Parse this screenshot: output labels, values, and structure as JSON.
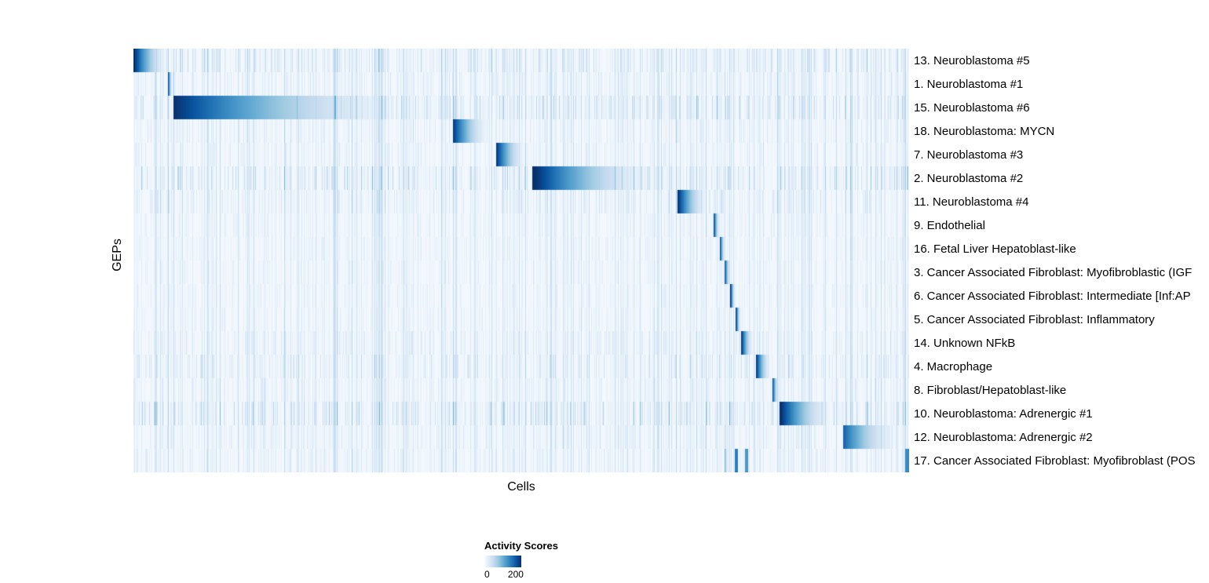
{
  "chart_data": {
    "type": "heatmap",
    "title": "",
    "xlabel": "Cells",
    "ylabel": "GEPs",
    "legend": {
      "title": "Activity Scores",
      "min": 0,
      "max": 200,
      "min_label": "0",
      "max_label": "200",
      "position": "bottom-left"
    },
    "colormap": [
      "#f7fbff",
      "#deebf7",
      "#c6dbef",
      "#9ecae1",
      "#6baed6",
      "#4292c6",
      "#2171b5",
      "#08519c",
      "#08306b"
    ],
    "grid": false,
    "description": "GEP activity scores per cell; cells ordered so each GEP's high-activity block forms a diagonal. Block start/end are fractions of the x-axis; peak is the activity score at the block's left edge, fading rightward.",
    "rows": [
      {
        "label": "13. Neuroblastoma #5",
        "block": {
          "start": 0.0,
          "end": 0.053
        },
        "peak": 205,
        "noise": 0.1
      },
      {
        "label": "1. Neuroblastoma #1",
        "block": {
          "start": 0.044,
          "end": 0.051
        },
        "peak": 210,
        "noise": 0.06
      },
      {
        "label": "15. Neuroblastoma #6",
        "block": {
          "start": 0.051,
          "end": 0.412
        },
        "peak": 200,
        "noise": 0.12
      },
      {
        "label": "18. Neuroblastoma: MYCN",
        "block": {
          "start": 0.412,
          "end": 0.468
        },
        "peak": 195,
        "noise": 0.05
      },
      {
        "label": "7. Neuroblastoma #3",
        "block": {
          "start": 0.468,
          "end": 0.514
        },
        "peak": 195,
        "noise": 0.05
      },
      {
        "label": "2. Neuroblastoma #2",
        "block": {
          "start": 0.514,
          "end": 0.702
        },
        "peak": 210,
        "noise": 0.13
      },
      {
        "label": "11. Neuroblastoma #4",
        "block": {
          "start": 0.702,
          "end": 0.748
        },
        "peak": 200,
        "noise": 0.07
      },
      {
        "label": "9. Endothelial",
        "block": {
          "start": 0.748,
          "end": 0.758
        },
        "peak": 210,
        "noise": 0.04
      },
      {
        "label": "16. Fetal Liver Hepatoblast-like",
        "block": {
          "start": 0.756,
          "end": 0.765
        },
        "peak": 210,
        "noise": 0.04
      },
      {
        "label": "3. Cancer Associated Fibroblast: Myofibroblastic (IGF",
        "block": {
          "start": 0.762,
          "end": 0.772
        },
        "peak": 210,
        "noise": 0.04
      },
      {
        "label": "6. Cancer Associated Fibroblast: Intermediate [Inf:AP",
        "block": {
          "start": 0.77,
          "end": 0.778
        },
        "peak": 200,
        "noise": 0.04
      },
      {
        "label": "5. Cancer Associated Fibroblast: Inflammatory",
        "block": {
          "start": 0.777,
          "end": 0.785
        },
        "peak": 200,
        "noise": 0.04
      },
      {
        "label": "14. Unknown NFkB",
        "block": {
          "start": 0.784,
          "end": 0.803
        },
        "peak": 200,
        "noise": 0.06
      },
      {
        "label": "4. Macrophage",
        "block": {
          "start": 0.803,
          "end": 0.826
        },
        "peak": 200,
        "noise": 0.08
      },
      {
        "label": "8. Fibroblast/Hepatoblast-like",
        "block": {
          "start": 0.824,
          "end": 0.834
        },
        "peak": 200,
        "noise": 0.05
      },
      {
        "label": "10. Neuroblastoma: Adrenergic #1",
        "block": {
          "start": 0.833,
          "end": 0.915
        },
        "peak": 210,
        "noise": 0.13
      },
      {
        "label": "12. Neuroblastoma: Adrenergic #2",
        "block": {
          "start": 0.915,
          "end": 1.0
        },
        "peak": 165,
        "noise": 0.06
      },
      {
        "label": "17. Cancer Associated Fibroblast: Myofibroblast (POS",
        "block": {
          "start": 0.762,
          "end": 0.768
        },
        "peak": 130,
        "noise": 0.05,
        "marks": [
          {
            "start": 0.776,
            "end": 0.78,
            "value": 140
          },
          {
            "start": 0.789,
            "end": 0.793,
            "value": 120
          },
          {
            "start": 0.995,
            "end": 1.0,
            "value": 130
          }
        ]
      }
    ],
    "render": {
      "seed": 42,
      "fade_power": 2.0,
      "background_value": 0.015
    }
  }
}
